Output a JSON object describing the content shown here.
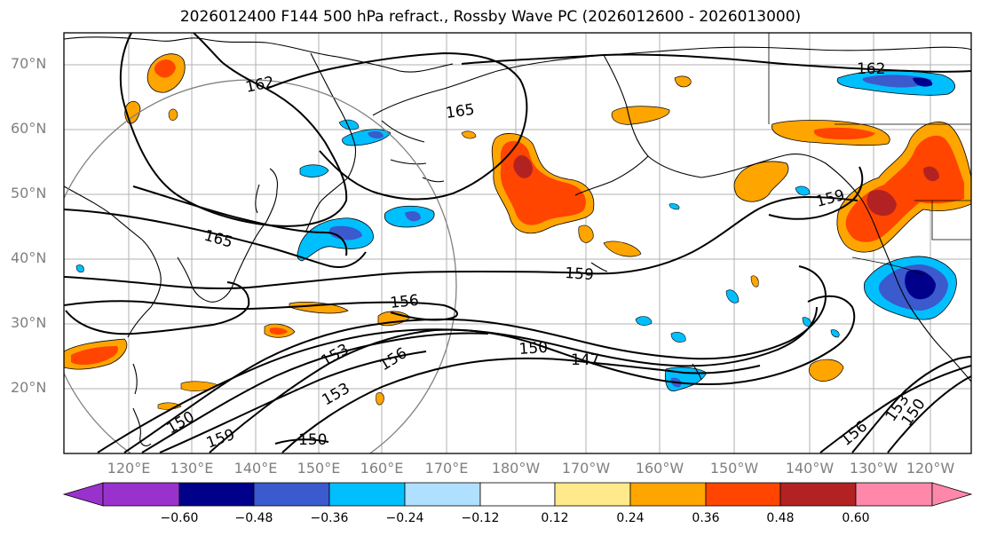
{
  "title": "2026012400 F144 500 hPa refract., Rossby Wave PC (2026012600 - 2026013000)",
  "lat_labels": [
    "70°N",
    "60°N",
    "50°N",
    "40°N",
    "30°N",
    "20°N"
  ],
  "lon_labels": [
    "120°E",
    "130°E",
    "140°E",
    "150°E",
    "160°E",
    "170°E",
    "180°W",
    "170°W",
    "160°W",
    "150°W",
    "140°W",
    "130°W",
    "120°W"
  ],
  "contour_labels": [
    "162",
    "165",
    "162",
    "159",
    "165",
    "159",
    "156",
    "150",
    "147",
    "153",
    "156",
    "153",
    "150",
    "159",
    "150",
    "156",
    "153",
    "150"
  ],
  "colorbar": {
    "ticks": [
      "−0.60",
      "−0.48",
      "−0.36",
      "−0.24",
      "−0.12",
      "0.12",
      "0.24",
      "0.36",
      "0.48",
      "0.60"
    ],
    "colors": [
      "#9932cc",
      "#00008b",
      "#3a5acd",
      "#00bfff",
      "#b0e0ff",
      "#ffffff",
      "#ffe98a",
      "#ffa500",
      "#ff4500",
      "#b22222",
      "#ff88aa"
    ]
  }
}
